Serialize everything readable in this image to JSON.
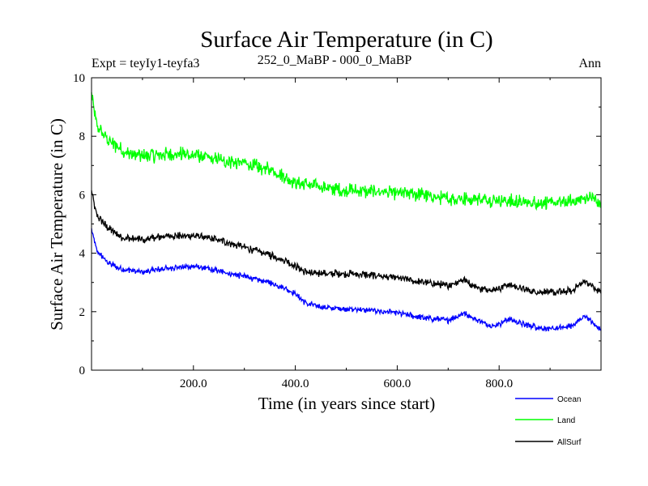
{
  "chart_data": {
    "type": "line",
    "title": "Surface Air Temperature (in C)",
    "subtitle_left": "Expt = teyIy1-teyfa3",
    "subtitle_center": "252_0_MaBP - 000_0_MaBP",
    "subtitle_right": "Ann",
    "xlabel": "Time (in years since start)",
    "ylabel": "Surface Air Temperature (in C)",
    "xlim": [
      0,
      1000
    ],
    "ylim": [
      0,
      10
    ],
    "xticks": [
      200,
      400,
      600,
      800
    ],
    "xtick_labels": [
      "200.0",
      "400.0",
      "600.0",
      "800.0"
    ],
    "yticks": [
      0,
      2,
      4,
      6,
      8,
      10
    ],
    "ytick_labels": [
      "0",
      "2",
      "4",
      "6",
      "8",
      "10"
    ],
    "grid": false,
    "legend_position": "bottom-right",
    "series": [
      {
        "name": "Ocean",
        "color": "#0000ff",
        "noise": 0.12,
        "points": [
          [
            0,
            4.8
          ],
          [
            10,
            4.1
          ],
          [
            30,
            3.7
          ],
          [
            60,
            3.45
          ],
          [
            100,
            3.35
          ],
          [
            150,
            3.5
          ],
          [
            200,
            3.55
          ],
          [
            250,
            3.4
          ],
          [
            300,
            3.2
          ],
          [
            350,
            3.0
          ],
          [
            380,
            2.8
          ],
          [
            400,
            2.6
          ],
          [
            420,
            2.3
          ],
          [
            450,
            2.15
          ],
          [
            500,
            2.1
          ],
          [
            550,
            2.05
          ],
          [
            600,
            1.95
          ],
          [
            650,
            1.8
          ],
          [
            700,
            1.7
          ],
          [
            730,
            1.95
          ],
          [
            760,
            1.7
          ],
          [
            790,
            1.5
          ],
          [
            820,
            1.75
          ],
          [
            850,
            1.55
          ],
          [
            900,
            1.4
          ],
          [
            940,
            1.5
          ],
          [
            970,
            1.85
          ],
          [
            990,
            1.5
          ],
          [
            1000,
            1.4
          ]
        ]
      },
      {
        "name": "Land",
        "color": "#00ff00",
        "noise": 0.28,
        "points": [
          [
            0,
            9.5
          ],
          [
            10,
            8.4
          ],
          [
            30,
            7.9
          ],
          [
            60,
            7.5
          ],
          [
            100,
            7.3
          ],
          [
            150,
            7.4
          ],
          [
            200,
            7.35
          ],
          [
            250,
            7.2
          ],
          [
            300,
            7.05
          ],
          [
            350,
            6.85
          ],
          [
            380,
            6.6
          ],
          [
            400,
            6.4
          ],
          [
            450,
            6.25
          ],
          [
            500,
            6.15
          ],
          [
            550,
            6.1
          ],
          [
            600,
            6.05
          ],
          [
            650,
            6.0
          ],
          [
            700,
            5.85
          ],
          [
            750,
            5.85
          ],
          [
            800,
            5.8
          ],
          [
            850,
            5.75
          ],
          [
            900,
            5.7
          ],
          [
            950,
            5.8
          ],
          [
            980,
            5.9
          ],
          [
            1000,
            5.7
          ]
        ]
      },
      {
        "name": "AllSurf",
        "color": "#000000",
        "noise": 0.15,
        "points": [
          [
            0,
            6.1
          ],
          [
            10,
            5.3
          ],
          [
            30,
            4.9
          ],
          [
            60,
            4.55
          ],
          [
            100,
            4.45
          ],
          [
            150,
            4.6
          ],
          [
            200,
            4.6
          ],
          [
            250,
            4.45
          ],
          [
            300,
            4.2
          ],
          [
            350,
            3.95
          ],
          [
            380,
            3.75
          ],
          [
            400,
            3.55
          ],
          [
            420,
            3.35
          ],
          [
            450,
            3.3
          ],
          [
            500,
            3.3
          ],
          [
            550,
            3.25
          ],
          [
            600,
            3.15
          ],
          [
            650,
            3.0
          ],
          [
            700,
            2.9
          ],
          [
            730,
            3.1
          ],
          [
            760,
            2.8
          ],
          [
            790,
            2.75
          ],
          [
            820,
            2.95
          ],
          [
            850,
            2.75
          ],
          [
            900,
            2.65
          ],
          [
            940,
            2.7
          ],
          [
            970,
            3.05
          ],
          [
            990,
            2.75
          ],
          [
            1000,
            2.65
          ]
        ]
      }
    ]
  }
}
